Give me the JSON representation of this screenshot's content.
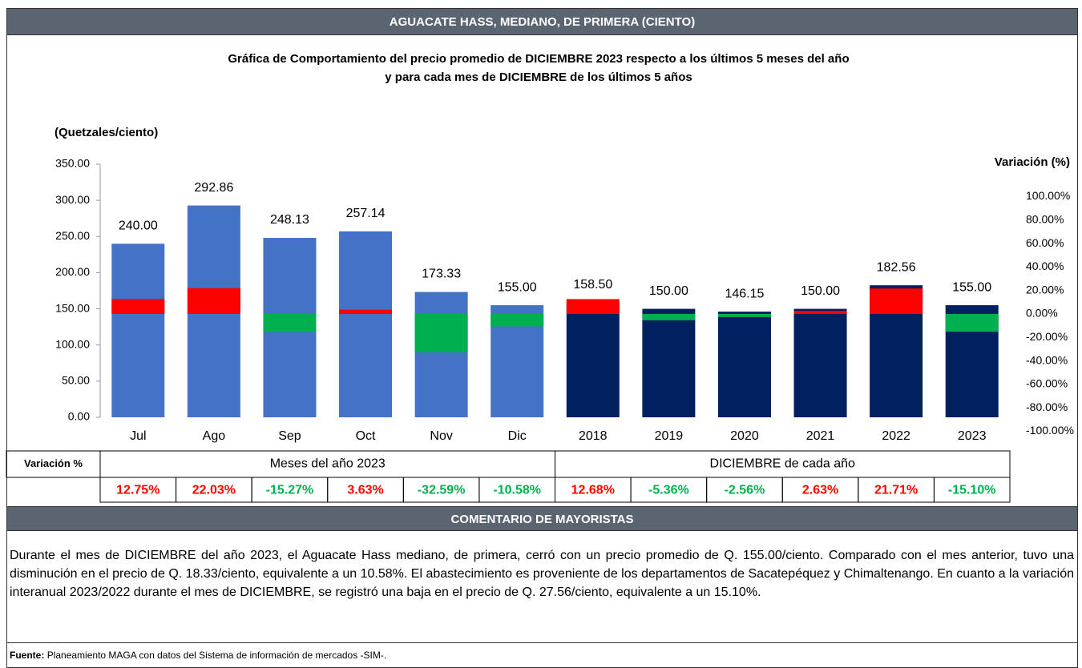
{
  "header": {
    "title": "AGUACATE HASS, MEDIANO, DE PRIMERA (CIENTO)"
  },
  "chart_data": {
    "type": "bar",
    "title_lines": [
      "Gráfica de Comportamiento del precio promedio de DICIEMBRE 2023 respecto a los últimos 5 meses del año",
      "y para cada mes de DICIEMBRE de los últimos 5 años"
    ],
    "y_label": "(Quetzales/ciento)",
    "y2_label": "Variación (%)",
    "categories": [
      "Jul",
      "Ago",
      "Sep",
      "Oct",
      "Nov",
      "Dic",
      "2018",
      "2019",
      "2020",
      "2021",
      "2022",
      "2023"
    ],
    "values": [
      240.0,
      292.86,
      248.13,
      257.14,
      173.33,
      155.0,
      158.5,
      150.0,
      146.15,
      150.0,
      182.56,
      155.0
    ],
    "value_labels": [
      "240.00",
      "292.86",
      "248.13",
      "257.14",
      "173.33",
      "155.00",
      "158.50",
      "150.00",
      "146.15",
      "150.00",
      "182.56",
      "155.00"
    ],
    "bar_colors": [
      "#4472c4",
      "#4472c4",
      "#4472c4",
      "#4472c4",
      "#4472c4",
      "#4472c4",
      "#002060",
      "#002060",
      "#002060",
      "#002060",
      "#002060",
      "#002060"
    ],
    "ylim": [
      0,
      350
    ],
    "yticks": [
      {
        "value": 0,
        "label": "0.00"
      },
      {
        "value": 50,
        "label": "50.00"
      },
      {
        "value": 100,
        "label": "100.00"
      },
      {
        "value": 150,
        "label": "150.00"
      },
      {
        "value": 200,
        "label": "200.00"
      },
      {
        "value": 250,
        "label": "250.00"
      },
      {
        "value": 300,
        "label": "300.00"
      },
      {
        "value": 350,
        "label": "350.00"
      }
    ],
    "variation": {
      "axis": "y2",
      "values": [
        12.75,
        22.03,
        -15.27,
        3.63,
        -32.59,
        -10.58,
        12.68,
        -5.36,
        -2.56,
        2.63,
        21.71,
        -15.1
      ],
      "value_labels": [
        "12.75%",
        "22.03%",
        "-15.27%",
        "3.63%",
        "-32.59%",
        "-10.58%",
        "12.68%",
        "-5.36%",
        "-2.56%",
        "2.63%",
        "21.71%",
        "-15.10%"
      ],
      "positive_color": "#ff0000",
      "negative_color": "#00b050"
    },
    "y2lim": [
      -100,
      100
    ],
    "y2ticks": [
      {
        "value": -100,
        "label": "-100.00%"
      },
      {
        "value": -80,
        "label": "-80.00%"
      },
      {
        "value": -60,
        "label": "-60.00%"
      },
      {
        "value": -40,
        "label": "-40.00%"
      },
      {
        "value": -20,
        "label": "-20.00%"
      },
      {
        "value": 0,
        "label": "0.00%"
      },
      {
        "value": 20,
        "label": "20.00%"
      },
      {
        "value": 40,
        "label": "40.00%"
      },
      {
        "value": 60,
        "label": "60.00%"
      },
      {
        "value": 80,
        "label": "80.00%"
      },
      {
        "value": 100,
        "label": "100.00%"
      }
    ],
    "table_label": "Variación %",
    "group_labels": [
      "Meses del año 2023",
      "DICIEMBRE de cada año"
    ]
  },
  "comment": {
    "title": "COMENTARIO DE MAYORISTAS",
    "text": "Durante el mes de DICIEMBRE del año 2023, el Aguacate Hass mediano, de primera, cerró con un precio promedio de Q. 155.00/ciento. Comparado con el mes anterior, tuvo una disminución en el precio de Q. 18.33/ciento, equivalente a un 10.58%. El abastecimiento es proveniente de los departamentos de Sacatepéquez y Chimaltenango. En cuanto a la variación interanual 2023/2022 durante el mes de DICIEMBRE, se registró una baja en el precio de Q. 27.56/ciento, equivalente a un 15.10%."
  },
  "source": {
    "label": "Fuente:",
    "text": "Planeamiento MAGA con datos del Sistema de información de mercados -SIM-."
  }
}
